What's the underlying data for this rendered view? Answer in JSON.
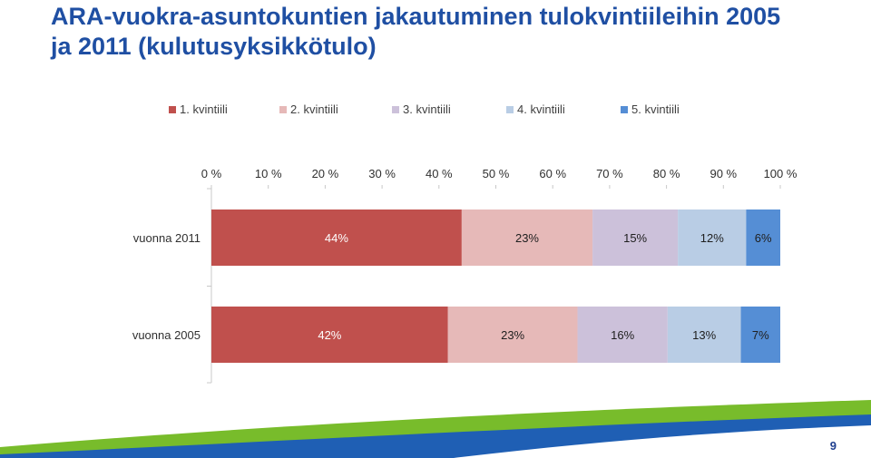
{
  "slide": {
    "title_line1": "ARA-vuokra-asuntokuntien jakautuminen tulokvintiileihin 2005",
    "title_line2": "ja 2011 (kulutusyksikkötulo)",
    "page_number": "9"
  },
  "colors": {
    "title": "#1f4fa3",
    "q1": "#c0504d",
    "q2": "#e6b9b8",
    "q3": "#ccc1da",
    "q4": "#b9cde5",
    "q5": "#558ed5",
    "wave_green": "#78bc2b",
    "wave_blue": "#1f5fb4"
  },
  "chart_data": {
    "type": "bar",
    "orientation": "horizontal",
    "stacked": "percent",
    "categories": [
      "vuonna 2011",
      "vuonna 2005"
    ],
    "xlim": [
      0,
      100
    ],
    "x_ticks": [
      "0 %",
      "10 %",
      "20 %",
      "30 %",
      "40 %",
      "50 %",
      "60 %",
      "70 %",
      "80 %",
      "90 %",
      "100 %"
    ],
    "x_tick_values": [
      0,
      10,
      20,
      30,
      40,
      50,
      60,
      70,
      80,
      90,
      100
    ],
    "x_axis_position": "top",
    "legend_position": "top",
    "grid": false,
    "series": [
      {
        "name": "1. kvintiili",
        "values": [
          44,
          42
        ],
        "labels": [
          "44%",
          "42%"
        ]
      },
      {
        "name": "2. kvintiili",
        "values": [
          23,
          23
        ],
        "labels": [
          "23%",
          "23%"
        ]
      },
      {
        "name": "3. kvintiili",
        "values": [
          15,
          16
        ],
        "labels": [
          "15%",
          "16%"
        ]
      },
      {
        "name": "4. kvintiili",
        "values": [
          12,
          13
        ],
        "labels": [
          "12%",
          "13%"
        ]
      },
      {
        "name": "5. kvintiili",
        "values": [
          6,
          7
        ],
        "labels": [
          "6%",
          "7%"
        ]
      }
    ]
  }
}
